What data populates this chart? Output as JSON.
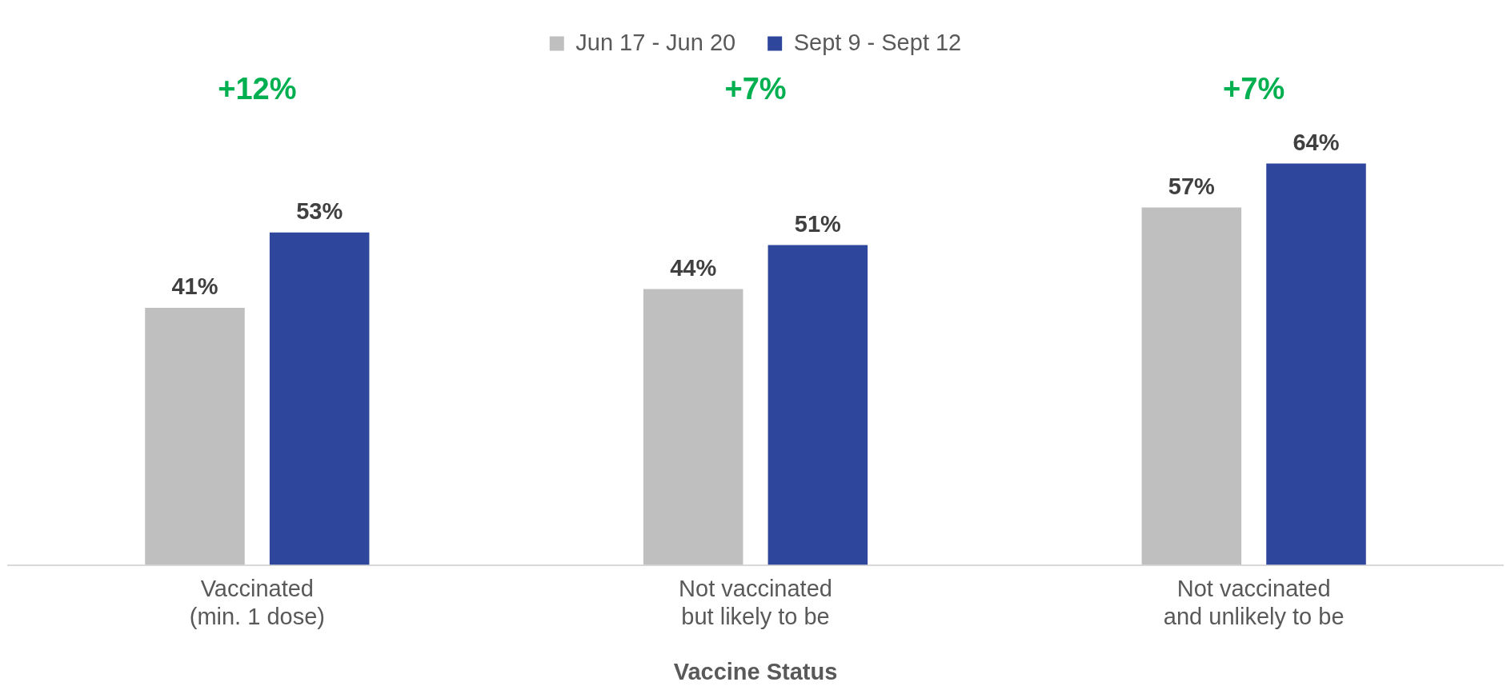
{
  "chart_data": {
    "type": "bar",
    "xlabel": "Vaccine Status",
    "categories": [
      "Vaccinated\n(min. 1 dose)",
      "Not vaccinated\nbut likely to be",
      "Not vaccinated\nand unlikely to be"
    ],
    "series": [
      {
        "name": "Jun 17 - Jun 20",
        "color": "#bfbfbf",
        "values": [
          41,
          44,
          57
        ],
        "value_labels": [
          "41%",
          "44%",
          "57%"
        ]
      },
      {
        "name": "Sept 9 - Sept 12",
        "color": "#2e469b",
        "values": [
          53,
          51,
          64
        ],
        "value_labels": [
          "53%",
          "51%",
          "64%"
        ]
      }
    ],
    "tick_labels": "x",
    "legend": "top",
    "grid": false,
    "annotations": [
      "+12%",
      "+7%",
      "+7%"
    ]
  }
}
